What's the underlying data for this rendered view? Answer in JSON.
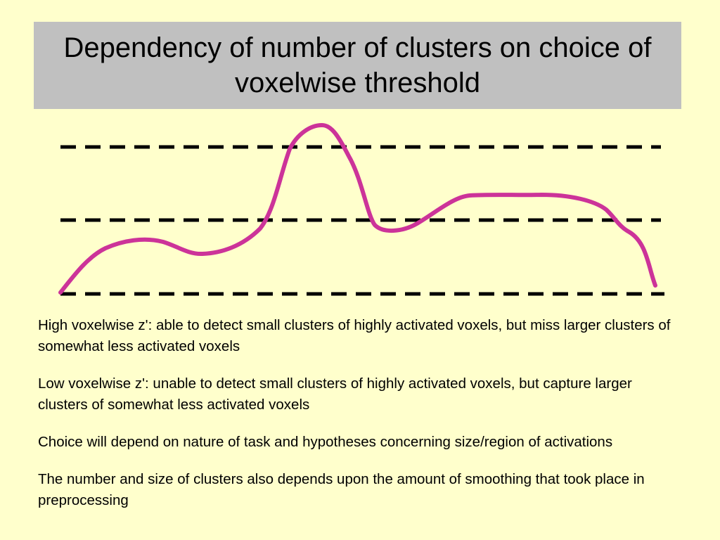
{
  "title": "Dependency of number of clusters on choice of voxelwise threshold",
  "colors": {
    "background": "#ffffcc",
    "title_box": "#c0c0c0",
    "curve": "#cc3399",
    "threshold_lines": "#000000"
  },
  "diagram": {
    "threshold_lines": [
      {
        "name": "high",
        "style": "dashed"
      },
      {
        "name": "medium",
        "style": "dashed"
      },
      {
        "name": "low",
        "style": "dashed"
      }
    ],
    "curve": {
      "style": "solid",
      "shape": "signal-with-peaks"
    }
  },
  "paragraphs": [
    "High voxelwise z': able to detect small clusters of highly activated voxels, but miss larger clusters of somewhat less activated voxels",
    "Low voxelwise z': unable to detect small clusters of highly activated voxels, but capture larger clusters of somewhat less activated voxels",
    "Choice will depend on nature of task and hypotheses concerning size/region of activations",
    "The number and size of clusters also depends upon the amount of smoothing that took place in preprocessing"
  ]
}
